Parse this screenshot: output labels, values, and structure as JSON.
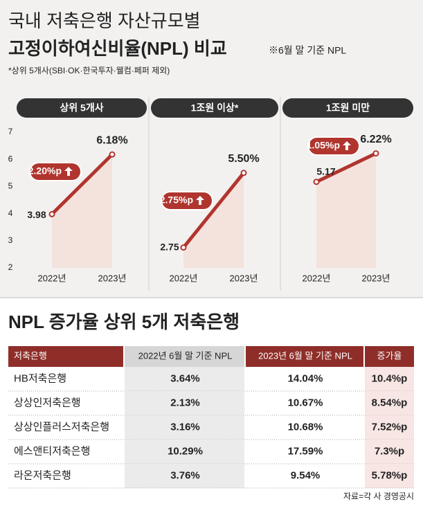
{
  "header": {
    "title": "국내 저축은행 자산규모별",
    "subtitle": "고정이하여신비율(NPL) 비교",
    "note": "※6월 말 기준 NPL",
    "subnote": "*상위 5개사(SBI·OK·한국투자·웰컴·페퍼 제외)"
  },
  "chart_data": [
    {
      "type": "line",
      "title": "상위 5개사",
      "categories": [
        "2022년",
        "2023년"
      ],
      "values": [
        3.98,
        6.18
      ],
      "value_labels": [
        "3.98",
        "6.18%"
      ],
      "annotation": "2.20%p",
      "color": "#b0352e",
      "ylim": [
        2,
        7
      ],
      "yticks": [
        2,
        3,
        4,
        5,
        6,
        7
      ]
    },
    {
      "type": "line",
      "title": "1조원 이상*",
      "categories": [
        "2022년",
        "2023년"
      ],
      "values": [
        2.75,
        5.5
      ],
      "value_labels": [
        "2.75",
        "5.50%"
      ],
      "annotation": "2.75%p",
      "color": "#b0352e",
      "ylim": [
        2,
        7
      ]
    },
    {
      "type": "line",
      "title": "1조원 미만",
      "categories": [
        "2022년",
        "2023년"
      ],
      "values": [
        5.17,
        6.22
      ],
      "value_labels": [
        "5.17",
        "6.22%"
      ],
      "annotation": "1.05%p",
      "color": "#b0352e",
      "ylim": [
        2,
        7
      ]
    }
  ],
  "table": {
    "title": "NPL 증가율 상위 5개 저축은행",
    "columns": [
      "저축은행",
      "2022년 6월 말 기준 NPL",
      "2023년 6월 말 기준 NPL",
      "증가율"
    ],
    "rows": [
      [
        "HB저축은행",
        "3.64%",
        "14.04%",
        "10.4%p"
      ],
      [
        "상상인저축은행",
        "2.13%",
        "10.67%",
        "8.54%p"
      ],
      [
        "상상인플러스저축은행",
        "3.16%",
        "10.68%",
        "7.52%p"
      ],
      [
        "에스앤티저축은행",
        "10.29%",
        "17.59%",
        "7.3%p"
      ],
      [
        "라온저축은행",
        "3.76%",
        "9.54%",
        "5.78%p"
      ]
    ]
  },
  "source": "자료=각 사 경영공시"
}
